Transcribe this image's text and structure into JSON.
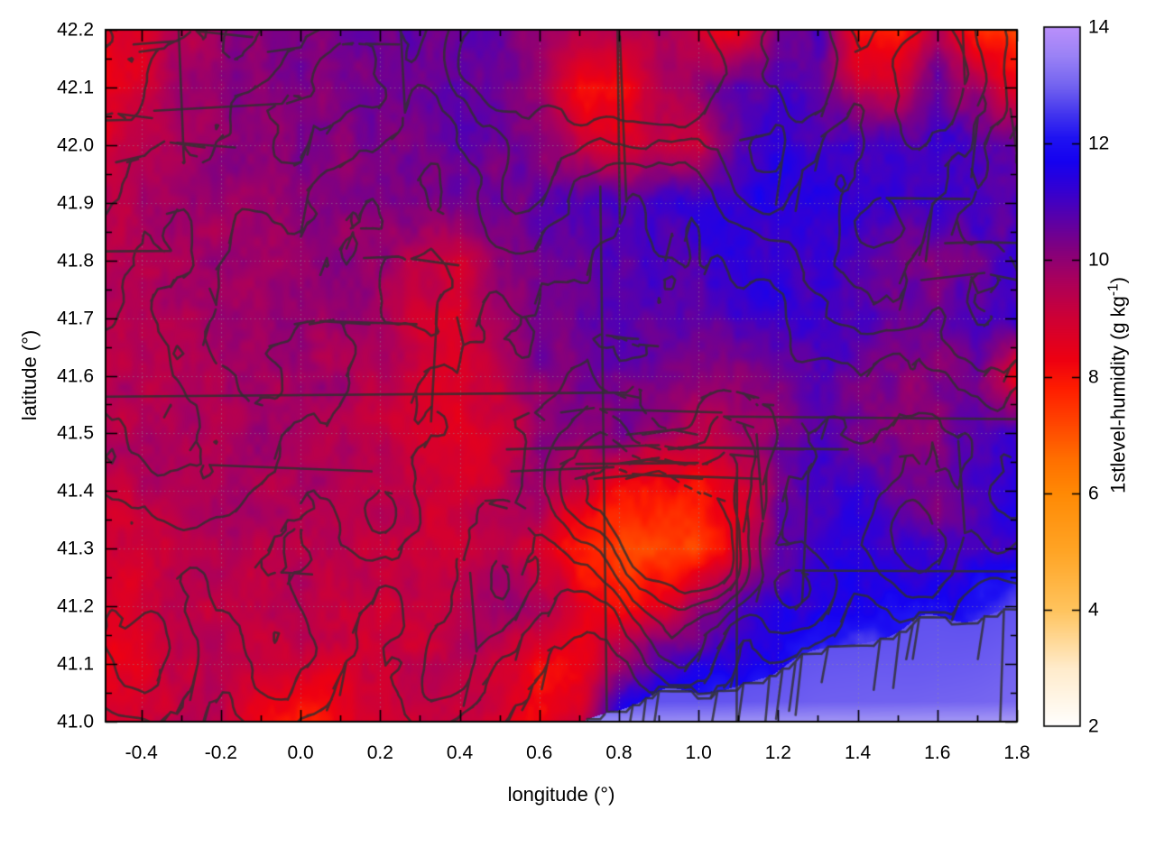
{
  "figure": {
    "xlabel": "longitude (°)",
    "ylabel": "latitude (°)",
    "colorbar_label_prefix": "1stlevel-humidity (g kg",
    "colorbar_label_sup": "-1",
    "colorbar_label_suffix": ")"
  },
  "chart_data": {
    "type": "heatmap",
    "title": "",
    "xlabel": "longitude (°)",
    "ylabel": "latitude (°)",
    "colorbar_label": "1stlevel-humidity (g kg^-1)",
    "xlim": [
      -0.49,
      1.8
    ],
    "ylim": [
      41.0,
      42.2
    ],
    "clim": [
      2,
      14
    ],
    "grid_on": true,
    "x_major_step": 0.2,
    "x_minor_step": 0.1,
    "y_major_step": 0.1,
    "y_minor_step": 0.05,
    "xticks": [
      -0.4,
      -0.2,
      0.0,
      0.2,
      0.4,
      0.6,
      0.8,
      1.0,
      1.2,
      1.4,
      1.6,
      1.8
    ],
    "xtick_labels": [
      "-0.4",
      "-0.2",
      "0.0",
      "0.2",
      "0.4",
      "0.6",
      "0.8",
      "1.0",
      "1.2",
      "1.4",
      "1.6",
      "1.8"
    ],
    "yticks": [
      41.0,
      41.1,
      41.2,
      41.3,
      41.4,
      41.5,
      41.6,
      41.7,
      41.8,
      41.9,
      42.0,
      42.1,
      42.2
    ],
    "ytick_labels": [
      "41.0",
      "41.1",
      "41.2",
      "41.3",
      "41.4",
      "41.5",
      "41.6",
      "41.7",
      "41.8",
      "41.9",
      "42.0",
      "42.1",
      "42.2"
    ],
    "cticks": [
      2,
      4,
      6,
      8,
      10,
      12,
      14
    ],
    "ctick_labels": [
      "2",
      "4",
      "6",
      "8",
      "10",
      "12",
      "14"
    ],
    "palette_stops": [
      [
        2.0,
        "#ffffff"
      ],
      [
        3.0,
        "#ffeccc"
      ],
      [
        4.0,
        "#ffc45e"
      ],
      [
        5.0,
        "#ffa526"
      ],
      [
        6.0,
        "#ff8a05"
      ],
      [
        6.6,
        "#ff6f00"
      ],
      [
        7.2,
        "#ff4600"
      ],
      [
        7.8,
        "#ff1e00"
      ],
      [
        8.3,
        "#ee0012"
      ],
      [
        9.0,
        "#cf0035"
      ],
      [
        9.7,
        "#a8005f"
      ],
      [
        10.2,
        "#82007f"
      ],
      [
        10.7,
        "#5c00a8"
      ],
      [
        11.2,
        "#3500d2"
      ],
      [
        11.7,
        "#1602f0"
      ],
      [
        12.1,
        "#1f13f2"
      ],
      [
        12.5,
        "#4234ee"
      ],
      [
        13.0,
        "#7464f0"
      ],
      [
        13.5,
        "#9a82f6"
      ],
      [
        14.0,
        "#bb90fb"
      ]
    ],
    "humidity_grid": {
      "lon_start": -0.5,
      "lon_step": 0.1,
      "lat_start": 42.2,
      "lat_step": -0.1,
      "values": [
        [
          8.3,
          8.7,
          9.4,
          9.9,
          10.1,
          10.2,
          10.3,
          10.4,
          10.5,
          10.6,
          10.5,
          10.0,
          9.4,
          9.3,
          9.8,
          9.0,
          8.2,
          10.4,
          10.8,
          7.8,
          7.6,
          9.8,
          7.6,
          7.3
        ],
        [
          8.0,
          8.9,
          9.7,
          10.0,
          10.1,
          10.2,
          10.3,
          10.5,
          10.6,
          10.7,
          10.4,
          9.6,
          8.2,
          7.8,
          9.4,
          10.2,
          10.6,
          11.0,
          10.8,
          9.2,
          9.0,
          10.6,
          9.6,
          8.6
        ],
        [
          9.0,
          9.4,
          9.8,
          10.0,
          10.0,
          10.1,
          10.2,
          10.4,
          10.5,
          10.6,
          10.5,
          10.2,
          9.4,
          8.8,
          9.2,
          8.8,
          10.8,
          11.3,
          11.2,
          11.0,
          11.0,
          11.1,
          10.8,
          10.4
        ],
        [
          9.3,
          9.6,
          9.8,
          9.9,
          10.0,
          10.0,
          10.1,
          10.2,
          10.3,
          10.3,
          10.4,
          10.6,
          10.8,
          10.9,
          11.0,
          11.2,
          11.4,
          11.5,
          11.4,
          11.3,
          11.2,
          11.3,
          11.0,
          10.8
        ],
        [
          9.4,
          9.6,
          9.7,
          9.8,
          9.9,
          9.9,
          10.0,
          10.0,
          9.4,
          9.0,
          10.2,
          10.4,
          10.6,
          10.8,
          10.9,
          11.0,
          11.2,
          11.3,
          11.2,
          10.6,
          10.2,
          10.3,
          10.6,
          11.0
        ],
        [
          9.5,
          9.6,
          9.6,
          9.7,
          9.8,
          9.8,
          9.9,
          9.6,
          9.0,
          8.8,
          9.8,
          10.3,
          10.5,
          10.6,
          10.7,
          10.8,
          11.0,
          11.2,
          11.0,
          10.8,
          10.6,
          10.4,
          10.8,
          11.2
        ],
        [
          9.4,
          9.5,
          9.5,
          9.6,
          9.6,
          9.7,
          9.7,
          9.4,
          8.9,
          8.7,
          9.2,
          10.2,
          10.4,
          10.5,
          10.4,
          10.2,
          10.0,
          10.4,
          10.8,
          10.6,
          10.2,
          10.0,
          10.6,
          8.2
        ],
        [
          9.5,
          9.5,
          9.6,
          9.6,
          9.7,
          9.7,
          9.6,
          9.3,
          8.9,
          8.6,
          8.8,
          10.0,
          10.3,
          10.2,
          9.8,
          9.4,
          9.6,
          10.2,
          10.8,
          10.4,
          10.0,
          10.2,
          10.9,
          11.0
        ],
        [
          9.1,
          9.3,
          9.5,
          9.5,
          9.6,
          9.6,
          9.5,
          9.4,
          9.2,
          9.0,
          9.4,
          9.8,
          9.0,
          8.2,
          7.8,
          8.0,
          8.8,
          10.2,
          11.0,
          11.2,
          10.6,
          10.2,
          10.8,
          11.2
        ],
        [
          9.0,
          8.9,
          9.4,
          9.5,
          9.5,
          9.5,
          9.4,
          9.3,
          9.2,
          9.2,
          9.6,
          9.0,
          7.8,
          7.2,
          7.1,
          7.3,
          8.4,
          10.6,
          11.2,
          11.4,
          11.2,
          10.8,
          11.0,
          11.4
        ],
        [
          9.0,
          8.8,
          9.2,
          9.4,
          9.4,
          9.4,
          9.3,
          9.2,
          9.2,
          9.4,
          9.8,
          9.6,
          8.6,
          8.2,
          8.6,
          9.8,
          10.8,
          11.3,
          11.5,
          11.6,
          11.6,
          11.8,
          12.2,
          12.7
        ],
        [
          8.4,
          8.6,
          9.2,
          9.3,
          9.2,
          9.0,
          8.8,
          9.0,
          9.2,
          9.4,
          9.2,
          8.2,
          8.4,
          9.8,
          11.0,
          11.4,
          11.6,
          11.8,
          12.8,
          12.8,
          12.8,
          12.8,
          12.8,
          12.8
        ],
        [
          8.8,
          9.0,
          9.4,
          9.2,
          8.4,
          7.8,
          8.2,
          8.8,
          9.0,
          9.2,
          8.6,
          7.9,
          9.0,
          11.8,
          12.8,
          12.8,
          12.8,
          12.8,
          12.8,
          12.8,
          12.8,
          12.8,
          12.8,
          12.8
        ]
      ]
    },
    "coastline": {
      "lon_ref": 0.72,
      "lat_ref": 41.0,
      "slope": 0.2,
      "sea_value": 12.8,
      "sea_value_far": 13.25
    },
    "terrain": {
      "base_min": 130,
      "base_max": 500,
      "ramp_deg": 0.55,
      "contour_levels": [
        0,
        250,
        400,
        550,
        700,
        850,
        1000
      ],
      "hills": [
        [
          0.72,
          42.25,
          0.22,
          1100
        ],
        [
          0.45,
          42.15,
          0.12,
          420
        ],
        [
          0.95,
          42.12,
          0.13,
          520
        ],
        [
          1.25,
          42.18,
          0.16,
          650
        ],
        [
          1.6,
          42.12,
          0.16,
          620
        ],
        [
          1.15,
          41.95,
          0.12,
          380
        ],
        [
          1.45,
          41.85,
          0.18,
          480
        ],
        [
          1.75,
          41.68,
          0.14,
          420
        ],
        [
          0.9,
          41.33,
          0.13,
          950
        ],
        [
          0.72,
          41.42,
          0.12,
          520
        ],
        [
          1.05,
          41.28,
          0.09,
          700
        ],
        [
          1.1,
          41.45,
          0.1,
          380
        ],
        [
          0.95,
          41.12,
          0.1,
          420
        ],
        [
          1.25,
          41.22,
          0.1,
          380
        ],
        [
          1.55,
          41.3,
          0.12,
          400
        ],
        [
          1.78,
          41.38,
          0.1,
          380
        ],
        [
          0.5,
          41.25,
          0.12,
          350
        ],
        [
          0.35,
          41.08,
          0.12,
          380
        ],
        [
          -0.05,
          41.12,
          0.14,
          360
        ],
        [
          -0.4,
          41.1,
          0.15,
          420
        ],
        [
          -0.45,
          41.55,
          0.2,
          380
        ],
        [
          -0.2,
          41.45,
          0.15,
          300
        ],
        [
          -0.35,
          41.85,
          0.18,
          360
        ],
        [
          -0.05,
          42.0,
          0.15,
          380
        ],
        [
          0.15,
          42.12,
          0.13,
          400
        ],
        [
          0.05,
          41.62,
          0.14,
          300
        ],
        [
          0.3,
          41.75,
          0.12,
          280
        ],
        [
          0.55,
          41.9,
          0.13,
          320
        ],
        [
          0.2,
          41.35,
          0.1,
          260
        ]
      ]
    }
  }
}
